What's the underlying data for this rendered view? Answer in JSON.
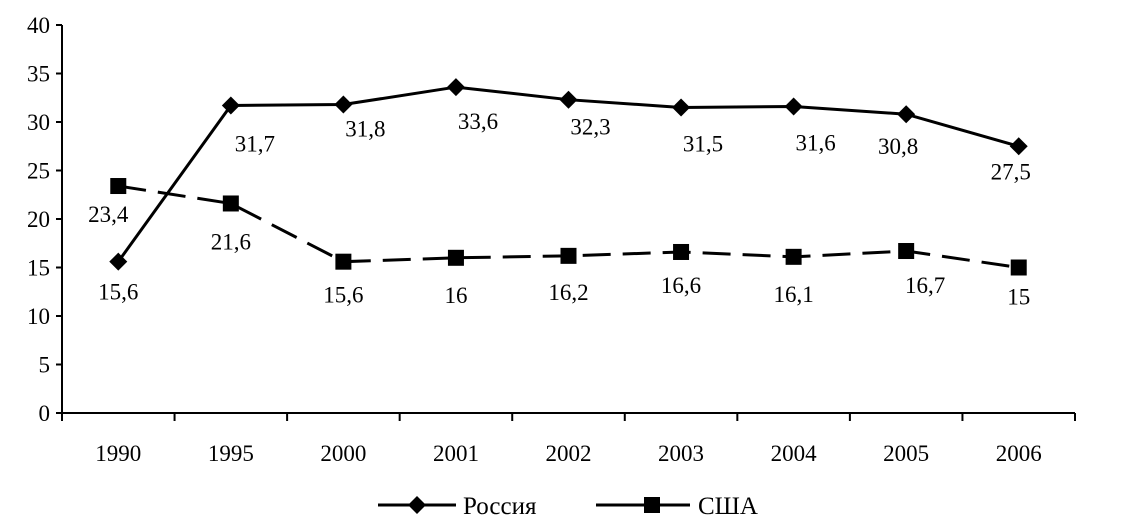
{
  "chart_data": {
    "type": "line",
    "title": "",
    "xlabel": "",
    "ylabel": "",
    "categories": [
      "1990",
      "1995",
      "2000",
      "2001",
      "2002",
      "2003",
      "2004",
      "2005",
      "2006"
    ],
    "ylim": [
      0,
      40
    ],
    "yticks": [
      "0",
      "5",
      "10",
      "15",
      "20",
      "25",
      "30",
      "35",
      "40"
    ],
    "grid": false,
    "legend": "bottom",
    "series": [
      {
        "name": "Россия",
        "values": [
          15.6,
          31.7,
          31.8,
          33.6,
          32.3,
          31.5,
          31.6,
          30.8,
          27.5
        ],
        "labels": [
          "15,6",
          "31,7",
          "31,8",
          "33,6",
          "32,3",
          "31,5",
          "31,6",
          "30,8",
          "27,5"
        ],
        "marker": "diamond",
        "line_style": "solid",
        "color": "#000000"
      },
      {
        "name": "США",
        "values": [
          23.4,
          21.6,
          15.6,
          16,
          16.2,
          16.6,
          16.1,
          16.7,
          15
        ],
        "labels": [
          "23,4",
          "21,6",
          "15,6",
          "16",
          "16,2",
          "16,6",
          "16,1",
          "16,7",
          "15"
        ],
        "marker": "square",
        "line_style": "dashed",
        "color": "#000000"
      }
    ]
  }
}
